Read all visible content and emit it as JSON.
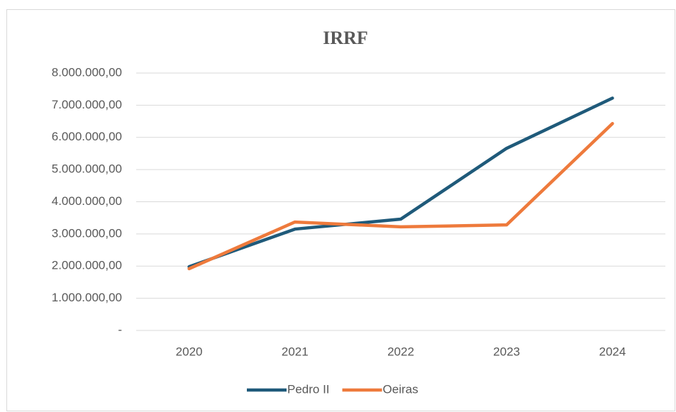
{
  "chart_data": {
    "type": "line",
    "title": "IRRF",
    "categories": [
      "2020",
      "2021",
      "2022",
      "2023",
      "2024"
    ],
    "series": [
      {
        "name": "Pedro II",
        "color": "#1f5a7a",
        "values": [
          1980000,
          3150000,
          3460000,
          5660000,
          7220000
        ]
      },
      {
        "name": "Oeiras",
        "color": "#ee7a3c",
        "values": [
          1920000,
          3370000,
          3220000,
          3280000,
          6430000
        ]
      }
    ],
    "ylim": [
      0,
      8000000
    ],
    "yticks": [
      {
        "value": 0,
        "label": "-"
      },
      {
        "value": 1000000,
        "label": "1.000.000,00"
      },
      {
        "value": 2000000,
        "label": "2.000.000,00"
      },
      {
        "value": 3000000,
        "label": "3.000.000,00"
      },
      {
        "value": 4000000,
        "label": "4.000.000,00"
      },
      {
        "value": 5000000,
        "label": "5.000.000,00"
      },
      {
        "value": 6000000,
        "label": "6.000.000,00"
      },
      {
        "value": 7000000,
        "label": "7.000.000,00"
      },
      {
        "value": 8000000,
        "label": "8.000.000,00"
      }
    ],
    "grid": true,
    "legend": "bottom"
  }
}
